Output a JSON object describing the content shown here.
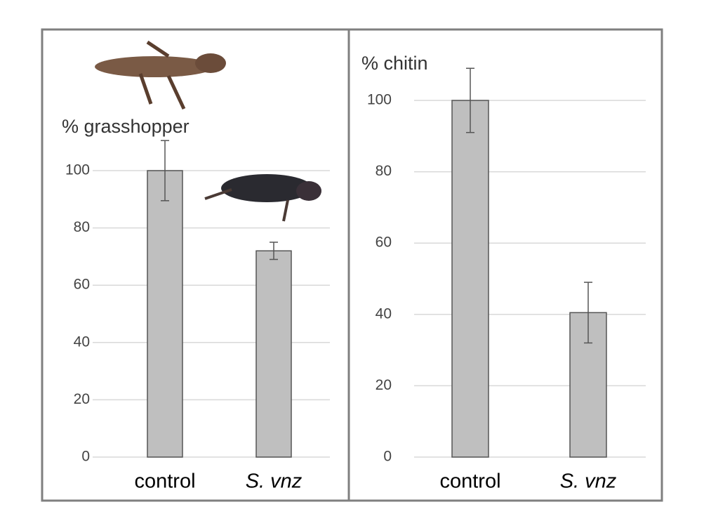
{
  "chart_data": [
    {
      "type": "bar",
      "ylabel": "% grasshopper",
      "categories": [
        "control",
        "S. vnz"
      ],
      "values": [
        100,
        72
      ],
      "errors": [
        10.5,
        3
      ],
      "color": "#bfbfbf",
      "ylim": [
        0,
        100
      ],
      "yticks": [
        0,
        20,
        40,
        60,
        80,
        100
      ],
      "grid": true
    },
    {
      "type": "bar",
      "ylabel": "% chitin",
      "categories": [
        "control",
        "S. vnz"
      ],
      "values": [
        100,
        40.5
      ],
      "errors": [
        9,
        8.5
      ],
      "color": "#bfbfbf",
      "ylim": [
        0,
        100
      ],
      "yticks": [
        0,
        20,
        40,
        60,
        80,
        100
      ],
      "grid": true
    }
  ]
}
